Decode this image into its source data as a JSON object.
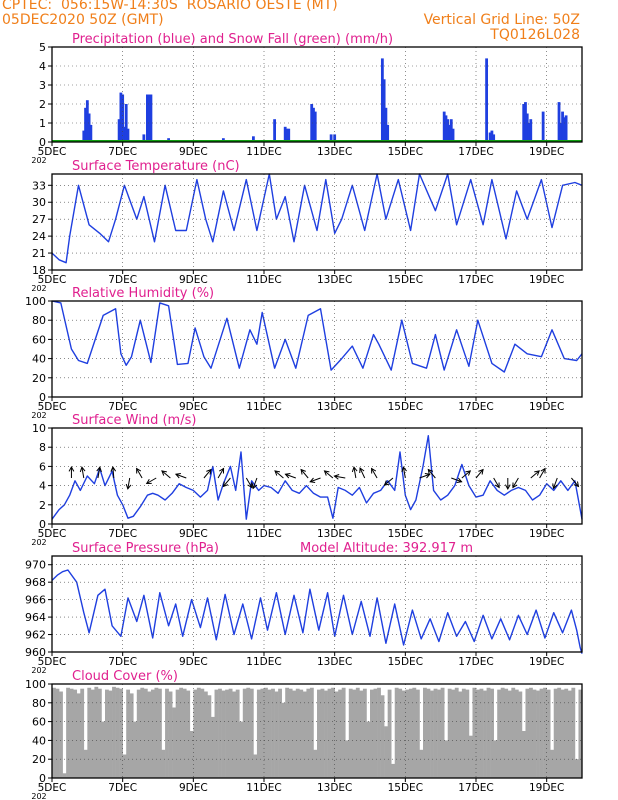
{
  "header": {
    "left_line1": "CPTEC:  056:15W-14:30S  ROSARIO OESTE (MT)",
    "left_line2": "05DEC2020 50Z (GMT)",
    "right_line1": "Vertical Grid Line: 50Z",
    "right_line2": "TQ0126L028"
  },
  "colors": {
    "header": "#f07f1a",
    "title": "#e0208f",
    "line": "#1f3fe0",
    "snow": "#10a010",
    "cloud": "#a6a6a6"
  },
  "x_ticks": [
    "5DEC",
    "7DEC",
    "9DEC",
    "11DEC",
    "13DEC",
    "15DEC",
    "17DEC",
    "19DEC"
  ],
  "x_tick_days": [
    5,
    7,
    9,
    11,
    13,
    15,
    17,
    19
  ],
  "year_stub": "202",
  "chart_data": [
    {
      "id": "precip",
      "type": "bar",
      "title": "Precipitation (blue) and Snow Fall (green) (mm/h)",
      "ylim": [
        0,
        5
      ],
      "yticks": [
        0,
        1,
        2,
        3,
        4,
        5
      ],
      "series": [
        {
          "name": "Precipitation",
          "x_day": [
            5.9,
            5.95,
            6.0,
            6.05,
            6.1,
            6.9,
            6.95,
            7.0,
            7.05,
            7.1,
            7.15,
            7.6,
            7.7,
            7.75,
            7.8,
            8.3,
            8.35,
            9.85,
            10.7,
            11.3,
            11.6,
            11.65,
            11.7,
            12.35,
            12.4,
            12.45,
            12.9,
            13.0,
            14.35,
            14.4,
            14.45,
            14.5,
            16.1,
            16.15,
            16.2,
            16.25,
            16.3,
            16.35,
            17.3,
            17.4,
            17.45,
            17.5,
            18.35,
            18.4,
            18.45,
            18.5,
            18.55,
            18.9,
            19.35,
            19.4,
            19.45,
            19.5,
            19.55
          ],
          "values": [
            0.6,
            1.8,
            2.2,
            1.5,
            0.9,
            1.2,
            2.6,
            2.5,
            0.8,
            2.0,
            0.7,
            0.4,
            2.5,
            2.5,
            2.5,
            0.2,
            0.1,
            0.2,
            0.3,
            1.2,
            0.8,
            0.7,
            0.7,
            2.0,
            1.8,
            1.6,
            0.4,
            0.4,
            4.4,
            3.3,
            1.8,
            0.9,
            1.6,
            1.4,
            1.2,
            0.9,
            1.2,
            0.7,
            4.4,
            0.5,
            0.6,
            0.4,
            2.0,
            2.1,
            1.5,
            1.0,
            1.2,
            1.6,
            2.1,
            1.0,
            1.6,
            1.3,
            1.4
          ]
        },
        {
          "name": "Snow Fall",
          "values": [
            0
          ]
        }
      ]
    },
    {
      "id": "temp",
      "type": "line",
      "title": "Surface Temperature (nC)",
      "ylim": [
        18,
        35
      ],
      "yticks": [
        18,
        21,
        24,
        27,
        30,
        33
      ],
      "x_day": [
        5.0,
        5.2,
        5.4,
        5.5,
        5.75,
        6.05,
        6.35,
        6.6,
        6.8,
        7.05,
        7.4,
        7.6,
        7.9,
        8.2,
        8.5,
        8.8,
        9.1,
        9.35,
        9.55,
        9.85,
        10.15,
        10.5,
        10.8,
        11.15,
        11.35,
        11.6,
        11.85,
        12.15,
        12.5,
        12.75,
        13.0,
        13.2,
        13.5,
        13.85,
        14.2,
        14.45,
        14.8,
        15.15,
        15.4,
        15.85,
        16.2,
        16.45,
        16.85,
        17.2,
        17.45,
        17.85,
        18.15,
        18.45,
        18.85,
        19.15,
        19.45,
        19.8,
        20.0
      ],
      "values": [
        21,
        19.8,
        19.3,
        24,
        33,
        26,
        24.5,
        23,
        27,
        33,
        27,
        31,
        23,
        33,
        25,
        25,
        34,
        27,
        23,
        32,
        25,
        34,
        25,
        35,
        27,
        31,
        23,
        33,
        25,
        34,
        24.5,
        27,
        33,
        25,
        35,
        27,
        34,
        25,
        35,
        28.5,
        35,
        26,
        34,
        26,
        34,
        23.5,
        32,
        27,
        34,
        25.5,
        33,
        33.5,
        33
      ]
    },
    {
      "id": "rh",
      "type": "line",
      "title": "Relative Humidity (%)",
      "ylim": [
        0,
        100
      ],
      "yticks": [
        0,
        20,
        40,
        60,
        80,
        100
      ],
      "x_day": [
        5.0,
        5.25,
        5.55,
        5.75,
        6.0,
        6.45,
        6.8,
        6.95,
        7.1,
        7.25,
        7.5,
        7.8,
        8.05,
        8.3,
        8.55,
        8.85,
        9.05,
        9.3,
        9.5,
        9.95,
        10.3,
        10.6,
        10.8,
        10.95,
        11.3,
        11.6,
        11.9,
        12.25,
        12.6,
        12.9,
        13.2,
        13.5,
        13.8,
        14.1,
        14.25,
        14.6,
        14.9,
        15.2,
        15.6,
        15.85,
        16.1,
        16.45,
        16.8,
        17.05,
        17.45,
        17.8,
        18.1,
        18.45,
        18.85,
        19.15,
        19.5,
        19.85,
        20.0
      ],
      "values": [
        100,
        98,
        50,
        38,
        35,
        85,
        92,
        45,
        33,
        42,
        80,
        36,
        98,
        95,
        34,
        35,
        72,
        42,
        30,
        82,
        30,
        70,
        55,
        88,
        30,
        60,
        30,
        85,
        92,
        28,
        40,
        53,
        30,
        65,
        55,
        28,
        80,
        35,
        30,
        65,
        28,
        70,
        32,
        80,
        35,
        26,
        55,
        45,
        42,
        70,
        40,
        38,
        45
      ]
    },
    {
      "id": "wind",
      "type": "line",
      "title": "Surface Wind (m/s)",
      "ylim": [
        0,
        10
      ],
      "yticks": [
        0,
        2,
        4,
        6,
        8,
        10
      ],
      "x_day": [
        5.0,
        5.2,
        5.35,
        5.5,
        5.65,
        5.8,
        6.0,
        6.2,
        6.35,
        6.5,
        6.7,
        6.85,
        7.0,
        7.15,
        7.3,
        7.5,
        7.7,
        7.85,
        8.0,
        8.2,
        8.4,
        8.6,
        8.8,
        9.0,
        9.2,
        9.4,
        9.55,
        9.7,
        9.85,
        10.05,
        10.2,
        10.35,
        10.5,
        10.65,
        10.85,
        11.0,
        11.2,
        11.4,
        11.6,
        11.8,
        12.0,
        12.2,
        12.4,
        12.6,
        12.8,
        12.95,
        13.1,
        13.3,
        13.5,
        13.7,
        13.9,
        14.1,
        14.3,
        14.5,
        14.7,
        14.85,
        15.0,
        15.15,
        15.3,
        15.5,
        15.65,
        15.8,
        16.0,
        16.2,
        16.4,
        16.6,
        16.8,
        17.0,
        17.2,
        17.4,
        17.6,
        17.8,
        18.0,
        18.2,
        18.4,
        18.6,
        18.8,
        19.0,
        19.2,
        19.4,
        19.6,
        19.8,
        20.0
      ],
      "values": [
        0.5,
        1.5,
        2,
        3,
        4.5,
        3.5,
        5,
        4.2,
        5.8,
        4,
        5.5,
        3,
        2,
        0.6,
        0.8,
        1.8,
        3,
        3.2,
        3,
        2.5,
        3.2,
        4.2,
        3.8,
        3.5,
        2.8,
        3.5,
        6,
        2.5,
        4.2,
        6,
        3.5,
        7.5,
        0.5,
        4.5,
        3.5,
        4,
        3.8,
        3.2,
        4.5,
        3.5,
        3.2,
        4,
        3.2,
        2.8,
        2.8,
        0.6,
        3.8,
        3.5,
        3,
        3.8,
        2.2,
        3.2,
        3.5,
        4.5,
        3.5,
        7.5,
        3,
        1.5,
        2.5,
        6,
        9.2,
        3.5,
        2.5,
        3,
        4,
        6.2,
        4,
        2.8,
        3,
        4.5,
        3.5,
        3,
        3.5,
        3.8,
        3.5,
        2.5,
        3,
        4.2,
        3.5,
        4.5,
        3.5,
        4.5,
        0.5
      ]
    },
    {
      "id": "pressure",
      "type": "line",
      "title": "Surface Pressure (hPa)",
      "annotation": "Model Altitude: 392.917 m",
      "ylim": [
        960,
        971
      ],
      "yticks": [
        960,
        962,
        964,
        966,
        968,
        970
      ],
      "x_day": [
        5.0,
        5.15,
        5.3,
        5.45,
        5.7,
        5.9,
        6.05,
        6.3,
        6.5,
        6.7,
        6.95,
        7.15,
        7.4,
        7.6,
        7.85,
        8.05,
        8.3,
        8.5,
        8.7,
        8.95,
        9.2,
        9.4,
        9.65,
        9.9,
        10.15,
        10.4,
        10.65,
        10.9,
        11.1,
        11.35,
        11.6,
        11.85,
        12.1,
        12.3,
        12.55,
        12.8,
        13.0,
        13.25,
        13.5,
        13.75,
        14.0,
        14.2,
        14.45,
        14.7,
        14.95,
        15.2,
        15.45,
        15.7,
        15.95,
        16.2,
        16.45,
        16.7,
        16.95,
        17.2,
        17.45,
        17.7,
        17.95,
        18.2,
        18.45,
        18.7,
        18.95,
        19.2,
        19.45,
        19.7,
        19.85,
        19.95,
        20.0
      ],
      "values": [
        968.2,
        968.8,
        969.2,
        969.4,
        968,
        964.5,
        962.2,
        966.5,
        967.2,
        963,
        961.8,
        966.2,
        963.5,
        966.5,
        961.6,
        966.8,
        963,
        965.5,
        961.8,
        966,
        962.8,
        966.2,
        961.4,
        966.6,
        962,
        965.5,
        961.5,
        966.2,
        962.5,
        966.8,
        962,
        966.5,
        962.2,
        967.2,
        962.5,
        966.8,
        961.8,
        966.5,
        962,
        965.8,
        961.8,
        966.2,
        961,
        965.5,
        960.8,
        964.8,
        961.5,
        963.8,
        961.2,
        964.5,
        961.8,
        963.5,
        961.2,
        964.2,
        961.5,
        963.8,
        961.4,
        964.2,
        962,
        964.8,
        961.6,
        964.5,
        962.2,
        964.8,
        962.5,
        960.5,
        959.8
      ]
    },
    {
      "id": "cloud",
      "type": "bar",
      "title": "Cloud Cover (%)",
      "ylim": [
        0,
        100
      ],
      "yticks": [
        0,
        20,
        40,
        60,
        80,
        100
      ],
      "x_day": [
        5.05,
        5.15,
        5.25,
        5.35,
        5.45,
        5.55,
        5.65,
        5.75,
        5.85,
        5.95,
        6.05,
        6.15,
        6.25,
        6.35,
        6.45,
        6.55,
        6.65,
        6.75,
        6.85,
        6.95,
        7.05,
        7.15,
        7.25,
        7.35,
        7.45,
        7.55,
        7.65,
        7.75,
        7.85,
        7.95,
        8.05,
        8.15,
        8.25,
        8.35,
        8.45,
        8.55,
        8.65,
        8.75,
        8.85,
        8.95,
        9.05,
        9.15,
        9.25,
        9.35,
        9.45,
        9.55,
        9.65,
        9.75,
        9.85,
        9.95,
        10.05,
        10.15,
        10.25,
        10.35,
        10.45,
        10.55,
        10.65,
        10.75,
        10.85,
        10.95,
        11.05,
        11.15,
        11.25,
        11.35,
        11.45,
        11.55,
        11.65,
        11.75,
        11.85,
        11.95,
        12.05,
        12.15,
        12.25,
        12.35,
        12.45,
        12.55,
        12.65,
        12.75,
        12.85,
        12.95,
        13.05,
        13.15,
        13.25,
        13.35,
        13.45,
        13.55,
        13.65,
        13.75,
        13.85,
        13.95,
        14.05,
        14.15,
        14.25,
        14.35,
        14.45,
        14.55,
        14.65,
        14.75,
        14.85,
        14.95,
        15.05,
        15.15,
        15.25,
        15.35,
        15.45,
        15.55,
        15.65,
        15.75,
        15.85,
        15.95,
        16.05,
        16.15,
        16.25,
        16.35,
        16.45,
        16.55,
        16.65,
        16.75,
        16.85,
        16.95,
        17.05,
        17.15,
        17.25,
        17.35,
        17.45,
        17.55,
        17.65,
        17.75,
        17.85,
        17.95,
        18.05,
        18.15,
        18.25,
        18.35,
        18.45,
        18.55,
        18.65,
        18.75,
        18.85,
        18.95,
        19.05,
        19.15,
        19.25,
        19.35,
        19.45,
        19.55,
        19.65,
        19.75,
        19.85,
        19.95
      ],
      "values": [
        96,
        95,
        92,
        5,
        96,
        95,
        94,
        90,
        95,
        30,
        96,
        94,
        97,
        95,
        60,
        94,
        93,
        97,
        96,
        95,
        25,
        94,
        90,
        60,
        94,
        96,
        95,
        92,
        94,
        96,
        95,
        30,
        95,
        92,
        75,
        94,
        96,
        95,
        93,
        50,
        94,
        96,
        95,
        92,
        88,
        65,
        94,
        95,
        93,
        94,
        95,
        92,
        94,
        60,
        95,
        96,
        95,
        25,
        94,
        95,
        96,
        94,
        95,
        92,
        95,
        80,
        96,
        95,
        93,
        95,
        94,
        92,
        95,
        96,
        30,
        94,
        95,
        93,
        95,
        96,
        92,
        94,
        96,
        40,
        95,
        94,
        96,
        93,
        95,
        60,
        94,
        95,
        96,
        88,
        55,
        94,
        15,
        96,
        95,
        93,
        94,
        95,
        96,
        94,
        30,
        96,
        95,
        93,
        95,
        94,
        96,
        40,
        95,
        94,
        96,
        92,
        95,
        94,
        45,
        96,
        94,
        95,
        93,
        96,
        95,
        40,
        94,
        96,
        95,
        93,
        96,
        94,
        92,
        50,
        95,
        96,
        94,
        93,
        95,
        96,
        94,
        30,
        95,
        96,
        94,
        95,
        93,
        96,
        20,
        94
      ]
    }
  ]
}
